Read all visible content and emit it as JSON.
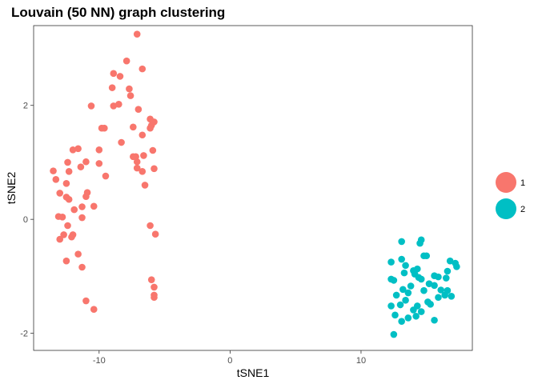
{
  "chart_data": {
    "type": "scatter",
    "title": "Louvain (50 NN) graph clustering",
    "xlabel": "tSNE1",
    "ylabel": "tSNE2",
    "xlim": [
      -15.0,
      18.5
    ],
    "ylim": [
      -2.3,
      3.4
    ],
    "x_ticks": [
      -10,
      0,
      10
    ],
    "y_ticks": [
      -2,
      0,
      2
    ],
    "x_tick_labels": [
      "-10",
      "0",
      "10"
    ],
    "y_tick_labels": [
      "-2",
      "0",
      "2"
    ],
    "grid": false,
    "legend_position": "right",
    "series": [
      {
        "name": "1",
        "color": "#F8766D",
        "points": [
          [
            -7.1,
            3.25
          ],
          [
            -7.9,
            2.78
          ],
          [
            -8.9,
            2.56
          ],
          [
            -6.7,
            2.64
          ],
          [
            -8.4,
            2.51
          ],
          [
            -9.0,
            2.31
          ],
          [
            -7.7,
            2.29
          ],
          [
            -7.6,
            2.17
          ],
          [
            -8.9,
            1.99
          ],
          [
            -8.5,
            2.02
          ],
          [
            -10.6,
            1.99
          ],
          [
            -7.0,
            1.93
          ],
          [
            -6.1,
            1.76
          ],
          [
            -5.8,
            1.71
          ],
          [
            -6.0,
            1.65
          ],
          [
            -6.1,
            1.6
          ],
          [
            -7.4,
            1.62
          ],
          [
            -9.6,
            1.6
          ],
          [
            -9.8,
            1.6
          ],
          [
            -6.7,
            1.48
          ],
          [
            -8.3,
            1.35
          ],
          [
            -10.0,
            1.22
          ],
          [
            -11.6,
            1.24
          ],
          [
            -12.0,
            1.22
          ],
          [
            -5.9,
            1.21
          ],
          [
            -6.6,
            1.12
          ],
          [
            -7.2,
            1.1
          ],
          [
            -7.4,
            1.1
          ],
          [
            -7.1,
            1.01
          ],
          [
            -11.0,
            1.01
          ],
          [
            -12.4,
            1.0
          ],
          [
            -10.0,
            0.98
          ],
          [
            -11.4,
            0.92
          ],
          [
            -7.1,
            0.9
          ],
          [
            -5.8,
            0.89
          ],
          [
            -13.5,
            0.85
          ],
          [
            -6.7,
            0.84
          ],
          [
            -12.3,
            0.84
          ],
          [
            -9.5,
            0.76
          ],
          [
            -13.3,
            0.7
          ],
          [
            -12.5,
            0.63
          ],
          [
            -6.5,
            0.6
          ],
          [
            -13.0,
            0.46
          ],
          [
            -10.9,
            0.47
          ],
          [
            -11.0,
            0.4
          ],
          [
            -12.5,
            0.39
          ],
          [
            -12.3,
            0.35
          ],
          [
            -11.3,
            0.22
          ],
          [
            -10.4,
            0.23
          ],
          [
            -11.9,
            0.17
          ],
          [
            -13.1,
            0.05
          ],
          [
            -12.8,
            0.04
          ],
          [
            -11.3,
            0.03
          ],
          [
            -12.4,
            -0.11
          ],
          [
            -6.1,
            -0.11
          ],
          [
            -12.0,
            -0.27
          ],
          [
            -12.7,
            -0.27
          ],
          [
            -5.7,
            -0.26
          ],
          [
            -13.0,
            -0.35
          ],
          [
            -12.1,
            -0.31
          ],
          [
            -11.6,
            -0.61
          ],
          [
            -12.5,
            -0.73
          ],
          [
            -11.3,
            -0.84
          ],
          [
            -6.0,
            -1.06
          ],
          [
            -5.8,
            -1.19
          ],
          [
            -5.8,
            -1.33
          ],
          [
            -5.8,
            -1.37
          ],
          [
            -11.0,
            -1.43
          ],
          [
            -10.4,
            -1.58
          ]
        ]
      },
      {
        "name": "2",
        "color": "#00BFC4",
        "points": [
          [
            14.6,
            -0.36
          ],
          [
            13.1,
            -0.39
          ],
          [
            14.5,
            -0.42
          ],
          [
            14.8,
            -0.64
          ],
          [
            15.0,
            -0.64
          ],
          [
            16.8,
            -0.73
          ],
          [
            12.3,
            -0.75
          ],
          [
            13.1,
            -0.7
          ],
          [
            17.2,
            -0.77
          ],
          [
            13.4,
            -0.81
          ],
          [
            17.3,
            -0.83
          ],
          [
            14.3,
            -0.87
          ],
          [
            14.0,
            -0.9
          ],
          [
            13.3,
            -0.94
          ],
          [
            14.1,
            -0.96
          ],
          [
            16.6,
            -0.91
          ],
          [
            15.6,
            -0.99
          ],
          [
            15.9,
            -1.01
          ],
          [
            14.4,
            -1.02
          ],
          [
            16.5,
            -1.03
          ],
          [
            12.3,
            -1.05
          ],
          [
            14.6,
            -1.05
          ],
          [
            12.5,
            -1.07
          ],
          [
            15.2,
            -1.13
          ],
          [
            15.6,
            -1.16
          ],
          [
            13.8,
            -1.17
          ],
          [
            13.2,
            -1.23
          ],
          [
            16.1,
            -1.24
          ],
          [
            16.6,
            -1.25
          ],
          [
            14.8,
            -1.25
          ],
          [
            13.6,
            -1.29
          ],
          [
            12.7,
            -1.33
          ],
          [
            16.9,
            -1.35
          ],
          [
            15.9,
            -1.37
          ],
          [
            16.4,
            -1.33
          ],
          [
            13.4,
            -1.42
          ],
          [
            15.1,
            -1.45
          ],
          [
            12.3,
            -1.52
          ],
          [
            13.0,
            -1.5
          ],
          [
            15.3,
            -1.49
          ],
          [
            14.3,
            -1.52
          ],
          [
            14.0,
            -1.59
          ],
          [
            14.6,
            -1.62
          ],
          [
            12.6,
            -1.68
          ],
          [
            14.2,
            -1.7
          ],
          [
            13.6,
            -1.73
          ],
          [
            15.6,
            -1.77
          ],
          [
            13.1,
            -1.79
          ],
          [
            12.5,
            -2.02
          ]
        ]
      }
    ]
  }
}
